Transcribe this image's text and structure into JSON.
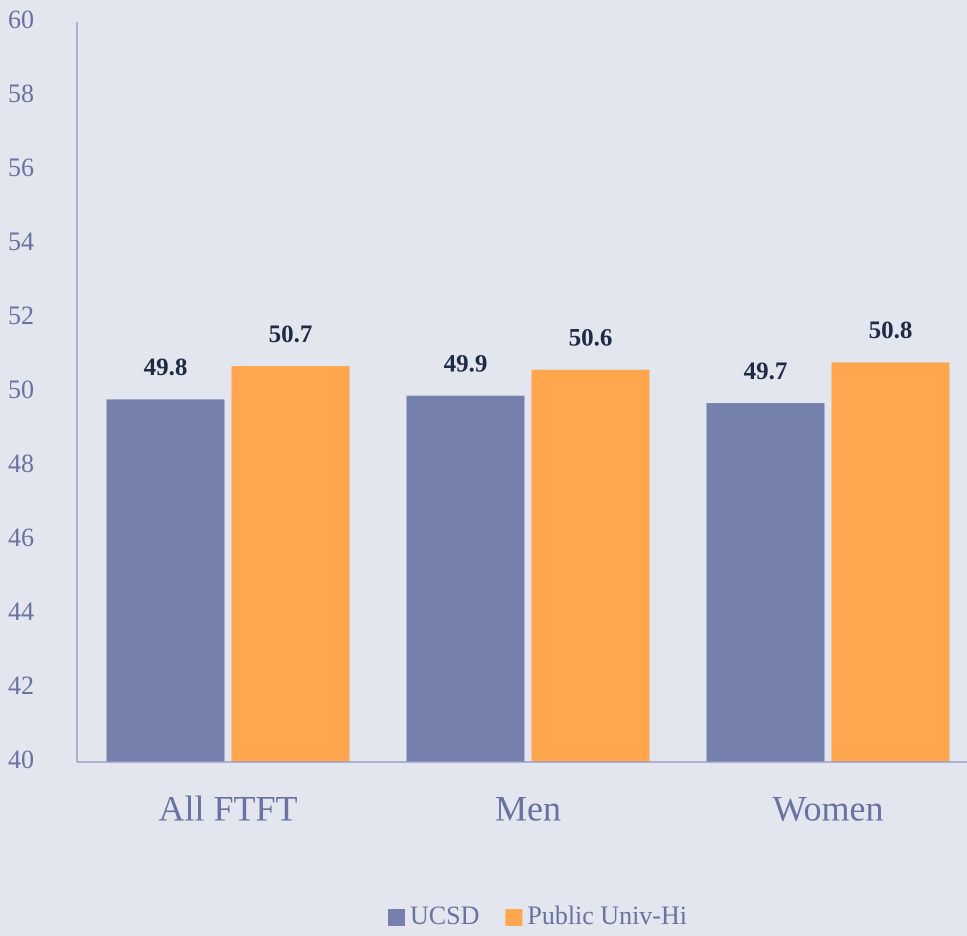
{
  "chart_data": {
    "type": "bar",
    "categories": [
      "All FTFT",
      "Men",
      "Women"
    ],
    "series": [
      {
        "name": "UCSD",
        "color": "#7580ad",
        "values": [
          49.8,
          49.9,
          49.7
        ]
      },
      {
        "name": "Public Univ-Hi",
        "color": "#ffa64f",
        "values": [
          50.7,
          50.6,
          50.8
        ]
      }
    ],
    "ylim": [
      40,
      60
    ],
    "yticks": [
      40,
      42,
      44,
      46,
      48,
      50,
      52,
      54,
      56,
      58,
      60
    ],
    "legend": "bottom"
  }
}
